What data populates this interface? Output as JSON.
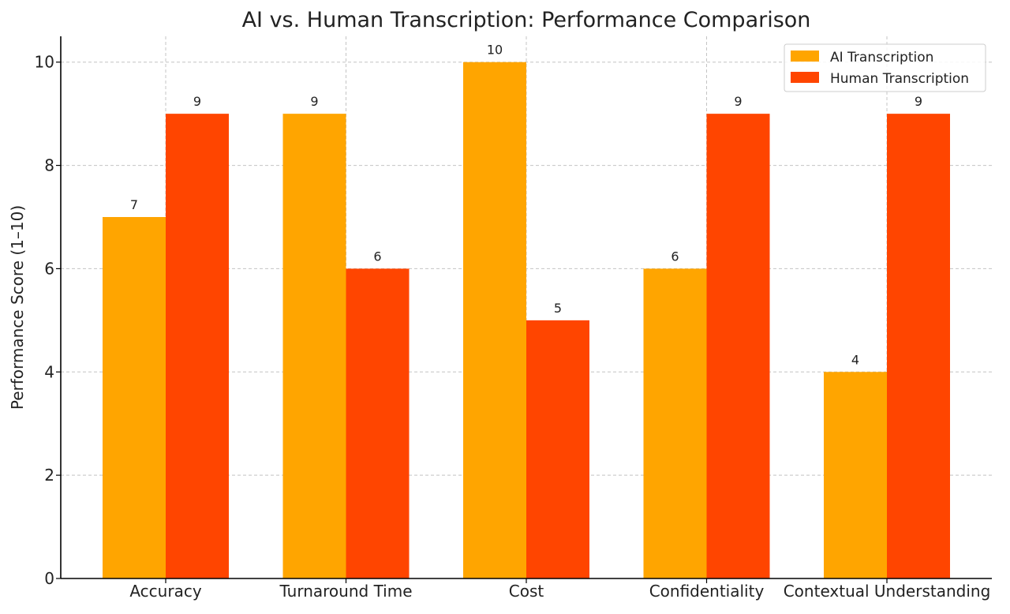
{
  "chart_data": {
    "type": "bar",
    "title": "AI vs. Human Transcription: Performance Comparison",
    "xlabel": "",
    "ylabel": "Performance Score (1–10)",
    "categories": [
      "Accuracy",
      "Turnaround Time",
      "Cost",
      "Confidentiality",
      "Contextual Understanding"
    ],
    "series": [
      {
        "name": "AI Transcription",
        "values": [
          7,
          9,
          10,
          6,
          4
        ],
        "color": "#FFA500"
      },
      {
        "name": "Human Transcription",
        "values": [
          9,
          6,
          5,
          9,
          9
        ],
        "color": "#FF4500"
      }
    ],
    "ylim": [
      0,
      10.5
    ],
    "yticks": [
      0,
      2,
      4,
      6,
      8,
      10
    ],
    "grid": true,
    "legend_position": "top-right",
    "data_labels": true
  }
}
